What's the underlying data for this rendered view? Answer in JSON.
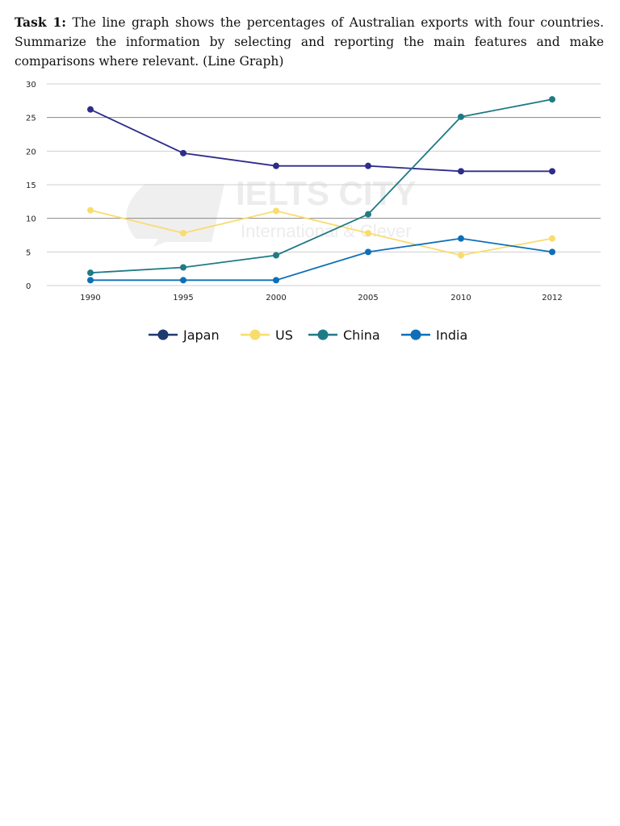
{
  "task": {
    "label": "Task 1:",
    "text": " The line graph shows the percentages of Australian exports with four countries. Summarize the information by selecting and reporting the main features and make comparisons where relevant. (Line Graph)"
  },
  "watermark": {
    "title": "IELTS CITY",
    "subtitle": "International & Clever"
  },
  "chart_data": {
    "type": "line",
    "title": "",
    "xlabel": "",
    "ylabel": "",
    "categories": [
      "1990",
      "1995",
      "2000",
      "2005",
      "2010",
      "2012"
    ],
    "ylim": [
      0,
      30
    ],
    "yticks": [
      0,
      5,
      10,
      15,
      20,
      25,
      30
    ],
    "grid": true,
    "legend_position": "bottom",
    "series": [
      {
        "name": "Japan",
        "color": "#2e2d8a",
        "legend_color": "#1f3a6e",
        "values": [
          26.2,
          19.7,
          17.8,
          17.8,
          17,
          17
        ]
      },
      {
        "name": "US",
        "color": "#f9dc6e",
        "legend_color": "#f9dc6e",
        "values": [
          11.2,
          7.8,
          11.1,
          7.8,
          4.5,
          7
        ]
      },
      {
        "name": "China",
        "color": "#1e7b85",
        "legend_color": "#1e7b85",
        "values": [
          1.9,
          2.7,
          4.5,
          10.6,
          25.1,
          27.7
        ]
      },
      {
        "name": "India",
        "color": "#0e6fb8",
        "legend_color": "#0e6fb8",
        "values": [
          0.8,
          0.8,
          0.8,
          5,
          7,
          5
        ]
      }
    ]
  }
}
